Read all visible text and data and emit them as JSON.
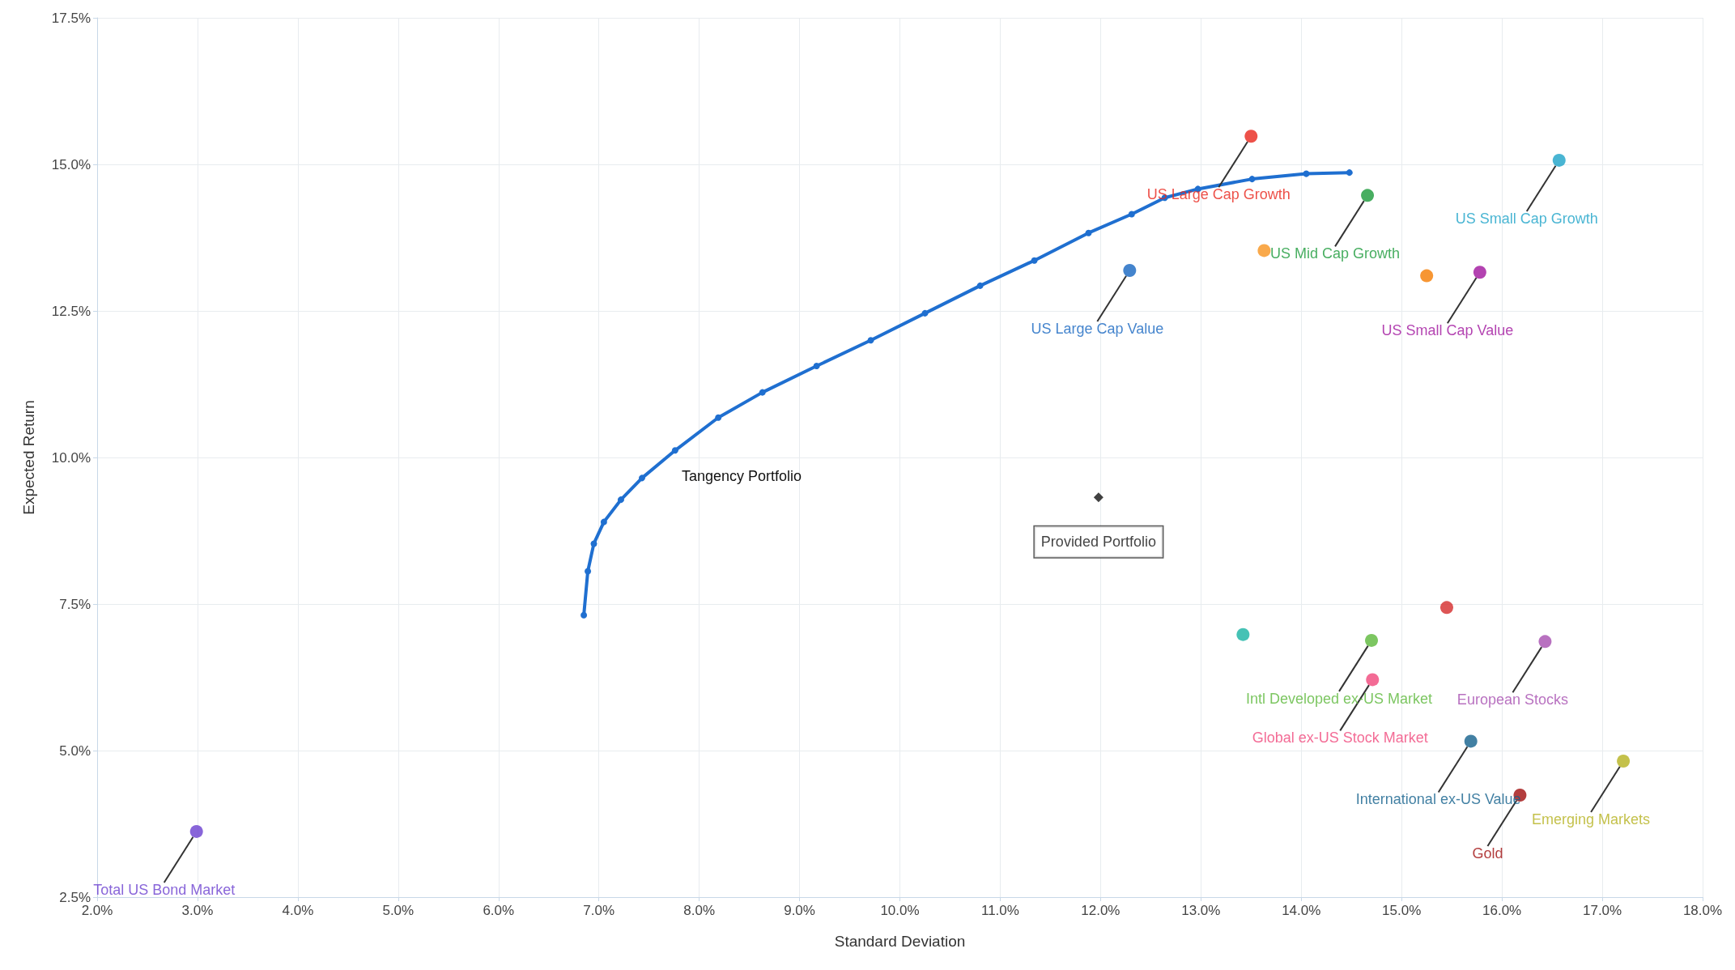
{
  "chart_data": {
    "type": "scatter",
    "xlabel": "Standard Deviation",
    "ylabel": "Expected Return",
    "xlim": [
      2,
      18
    ],
    "xticks": [
      {
        "value": 2,
        "label": "2.0%"
      },
      {
        "value": 3,
        "label": "3.0%"
      },
      {
        "value": 4,
        "label": "4.0%"
      },
      {
        "value": 5,
        "label": "5.0%"
      },
      {
        "value": 6,
        "label": "6.0%"
      },
      {
        "value": 7,
        "label": "7.0%"
      },
      {
        "value": 8,
        "label": "8.0%"
      },
      {
        "value": 9,
        "label": "9.0%"
      },
      {
        "value": 10,
        "label": "10.0%"
      },
      {
        "value": 11,
        "label": "11.0%"
      },
      {
        "value": 12,
        "label": "12.0%"
      },
      {
        "value": 13,
        "label": "13.0%"
      },
      {
        "value": 14,
        "label": "14.0%"
      },
      {
        "value": 15,
        "label": "15.0%"
      },
      {
        "value": 16,
        "label": "16.0%"
      },
      {
        "value": 17,
        "label": "17.0%"
      },
      {
        "value": 18,
        "label": "18.0%"
      }
    ],
    "ylim": [
      2.5,
      17.5
    ],
    "yticks": [
      {
        "value": 2.5,
        "label": "2.5%"
      },
      {
        "value": 5,
        "label": "5.0%"
      },
      {
        "value": 7.5,
        "label": "7.5%"
      },
      {
        "value": 10,
        "label": "10.0%"
      },
      {
        "value": 12.5,
        "label": "12.5%"
      },
      {
        "value": 15,
        "label": "15.0%"
      },
      {
        "value": 17.5,
        "label": "17.5%"
      }
    ],
    "grid": true,
    "legend": false,
    "annotations": [
      {
        "text": "Tangency Portfolio",
        "x": 7.7,
        "y": 10.1
      }
    ],
    "series": [
      {
        "type": "line",
        "color": "#1f6fd0",
        "marker": "circle",
        "x": [
          6.85,
          6.89,
          6.95,
          7.05,
          7.22,
          7.43,
          7.76,
          8.19,
          8.63,
          9.17,
          9.71,
          10.25,
          10.8,
          11.34,
          11.88,
          12.31,
          12.64,
          12.97,
          13.51,
          14.05,
          14.48
        ],
        "values": [
          7.31,
          8.06,
          8.53,
          8.9,
          9.28,
          9.65,
          10.12,
          10.68,
          11.11,
          11.56,
          12.0,
          12.46,
          12.93,
          13.36,
          13.83,
          14.15,
          14.43,
          14.58,
          14.75,
          14.84,
          14.86
        ]
      },
      {
        "name": "US Large Cap Growth",
        "color": "#e8251b",
        "marker": "circle",
        "x": [
          13.5
        ],
        "values": [
          15.48
        ]
      },
      {
        "name": "US Small Cap Growth",
        "color": "#1ba3c8",
        "marker": "circle",
        "x": [
          16.57
        ],
        "values": [
          15.07
        ]
      },
      {
        "name": "US Mid Cap Growth",
        "color": "#1a9a3a",
        "marker": "circle",
        "x": [
          14.66
        ],
        "values": [
          14.47
        ]
      },
      {
        "color": "#f7931e",
        "marker": "circle",
        "x": [
          13.63
        ],
        "values": [
          13.53
        ]
      },
      {
        "color": "#f57c00",
        "marker": "circle",
        "x": [
          15.25
        ],
        "values": [
          13.1
        ]
      },
      {
        "name": "US Small Cap Value",
        "color": "#a0149e",
        "marker": "circle",
        "x": [
          15.78
        ],
        "values": [
          13.16
        ]
      },
      {
        "name": "US Large Cap Value",
        "color": "#1565c0",
        "marker": "circle",
        "x": [
          12.29
        ],
        "values": [
          13.19
        ]
      },
      {
        "name": "Provided Portfolio",
        "color": "#111111",
        "marker": "diamond",
        "x": [
          11.98
        ],
        "values": [
          9.32
        ]
      },
      {
        "color": "#17b3a3",
        "marker": "circle",
        "x": [
          13.42
        ],
        "values": [
          6.98
        ]
      },
      {
        "color": "#d42a2a",
        "marker": "circle",
        "x": [
          15.45
        ],
        "values": [
          7.44
        ]
      },
      {
        "name": "Intl Developed ex-US Market",
        "color": "#5bb83a",
        "marker": "circle",
        "x": [
          14.7
        ],
        "values": [
          6.88
        ]
      },
      {
        "name": "Global ex-US Stock Market",
        "color": "#f0467a",
        "marker": "circle",
        "x": [
          14.71
        ],
        "values": [
          6.21
        ]
      },
      {
        "name": "European Stocks",
        "color": "#a64db0",
        "marker": "circle",
        "x": [
          16.43
        ],
        "values": [
          6.86
        ]
      },
      {
        "name": "International ex-US Value",
        "color": "#13608c",
        "marker": "circle",
        "x": [
          15.69
        ],
        "values": [
          5.16
        ]
      },
      {
        "name": "Emerging Markets",
        "color": "#b5b21e",
        "marker": "circle",
        "x": [
          17.21
        ],
        "values": [
          4.82
        ]
      },
      {
        "name": "Gold",
        "color": "#a00e0e",
        "marker": "circle",
        "x": [
          16.18
        ],
        "values": [
          4.24
        ]
      },
      {
        "name": "Total US Bond Market",
        "color": "#6a3fd0",
        "marker": "circle",
        "x": [
          2.99
        ],
        "values": [
          3.62
        ]
      }
    ]
  }
}
